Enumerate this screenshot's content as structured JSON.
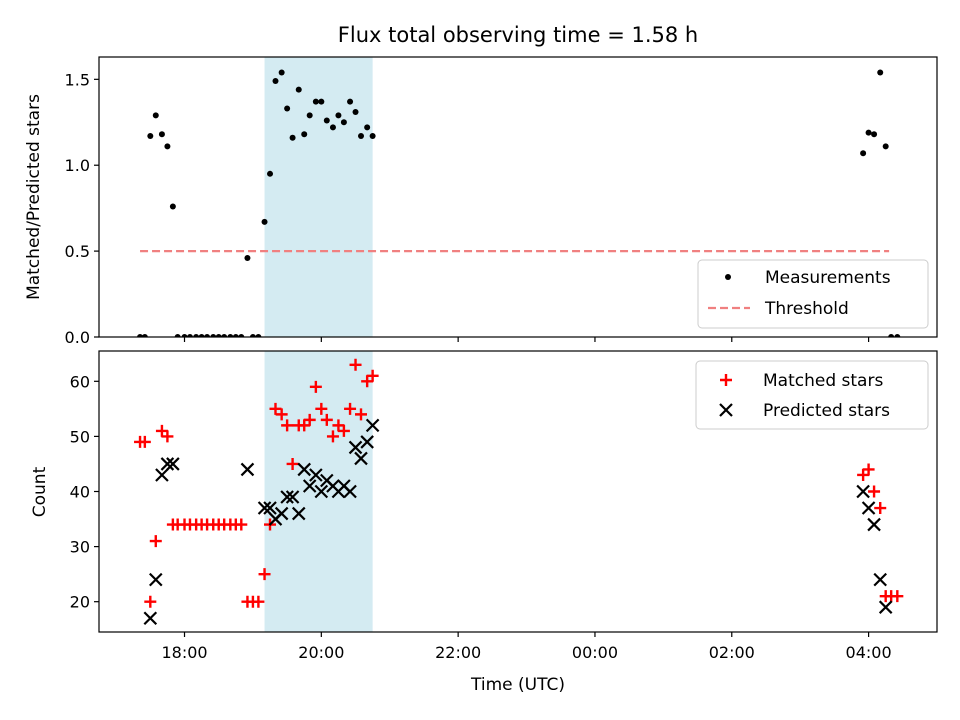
{
  "chart_data": [
    {
      "type": "scatter",
      "title": "Flux total observing time = 1.58 h",
      "xlabel": "",
      "ylabel": "Matched/Predicted stars",
      "x_unit": "hours since 00:00 UTC of first day",
      "xlim": [
        16.75,
        29.0
      ],
      "ylim": [
        0,
        1.63
      ],
      "yticks": [
        0,
        0.5,
        1.0,
        1.5
      ],
      "ytick_labels": [
        "0.0",
        "0.5",
        "1.0",
        "1.5"
      ],
      "highlight_span": [
        19.17,
        20.75
      ],
      "threshold": {
        "name": "Threshold",
        "value": 0.5,
        "x_range": [
          17.35,
          28.3
        ],
        "color": "#f08080"
      },
      "legend": {
        "location": "lower right",
        "entries": [
          "Measurements",
          "Threshold"
        ]
      },
      "series": [
        {
          "name": "Measurements",
          "marker": "dot",
          "color": "#000000",
          "x": [
            17.35,
            17.42,
            17.5,
            17.58,
            17.67,
            17.75,
            17.83,
            17.9,
            18.0,
            18.08,
            18.17,
            18.25,
            18.33,
            18.42,
            18.5,
            18.58,
            18.67,
            18.75,
            18.83,
            18.92,
            19.0,
            19.08,
            19.17,
            19.25,
            19.33,
            19.42,
            19.5,
            19.58,
            19.67,
            19.75,
            19.83,
            19.92,
            20.0,
            20.08,
            20.17,
            20.25,
            20.33,
            20.42,
            20.5,
            20.58,
            20.67,
            20.75,
            27.92,
            28.0,
            28.08,
            28.17,
            28.25,
            28.33,
            28.42
          ],
          "y": [
            0.0,
            0.0,
            1.17,
            1.29,
            1.18,
            1.11,
            0.76,
            0.0,
            0.0,
            0.0,
            0.0,
            0.0,
            0.0,
            0.0,
            0.0,
            0.0,
            0.0,
            0.0,
            0.0,
            0.46,
            0.0,
            0.0,
            0.67,
            0.95,
            1.49,
            1.54,
            1.33,
            1.16,
            1.44,
            1.18,
            1.29,
            1.37,
            1.37,
            1.26,
            1.22,
            1.29,
            1.25,
            1.37,
            1.31,
            1.17,
            1.22,
            1.17,
            1.07,
            1.19,
            1.18,
            1.54,
            1.11,
            0.0,
            0.0
          ]
        }
      ]
    },
    {
      "type": "scatter",
      "title": "",
      "xlabel": "Time (UTC)",
      "ylabel": "Count",
      "xlim": [
        16.75,
        29.0
      ],
      "ylim": [
        14.5,
        65.5
      ],
      "xticks": [
        18,
        20,
        22,
        24,
        26,
        28
      ],
      "xtick_labels": [
        "18:00",
        "20:00",
        "22:00",
        "00:00",
        "02:00",
        "04:00"
      ],
      "yticks": [
        20,
        30,
        40,
        50,
        60
      ],
      "ytick_labels": [
        "20",
        "30",
        "40",
        "50",
        "60"
      ],
      "highlight_span": [
        19.17,
        20.75
      ],
      "legend": {
        "location": "upper right",
        "entries": [
          "Matched stars",
          "Predicted stars"
        ]
      },
      "series": [
        {
          "name": "Matched stars",
          "marker": "plus",
          "color": "#ff0000",
          "x": [
            17.35,
            17.42,
            17.5,
            17.58,
            17.67,
            17.75,
            17.83,
            17.9,
            18.0,
            18.08,
            18.17,
            18.25,
            18.33,
            18.42,
            18.5,
            18.58,
            18.67,
            18.75,
            18.83,
            18.92,
            19.0,
            19.08,
            19.17,
            19.25,
            19.33,
            19.42,
            19.5,
            19.58,
            19.67,
            19.75,
            19.83,
            19.92,
            20.0,
            20.08,
            20.17,
            20.25,
            20.33,
            20.42,
            20.5,
            20.58,
            20.67,
            20.75,
            27.92,
            28.0,
            28.08,
            28.17,
            28.25,
            28.33,
            28.42
          ],
          "y": [
            49,
            49,
            20,
            31,
            51,
            50,
            34,
            34,
            34,
            34,
            34,
            34,
            34,
            34,
            34,
            34,
            34,
            34,
            34,
            20,
            20,
            20,
            25,
            34,
            55,
            54,
            52,
            45,
            52,
            52,
            53,
            59,
            55,
            53,
            50,
            52,
            51,
            55,
            63,
            54,
            60,
            61,
            43,
            44,
            40,
            37,
            21,
            21,
            21
          ]
        },
        {
          "name": "Predicted stars",
          "marker": "x",
          "color": "#000000",
          "x": [
            17.5,
            17.58,
            17.67,
            17.75,
            17.83,
            18.92,
            19.17,
            19.25,
            19.33,
            19.42,
            19.5,
            19.58,
            19.67,
            19.75,
            19.83,
            19.92,
            20.0,
            20.08,
            20.17,
            20.25,
            20.33,
            20.42,
            20.5,
            20.58,
            20.67,
            20.75,
            27.92,
            28.0,
            28.08,
            28.17,
            28.25
          ],
          "y": [
            17,
            24,
            43,
            45,
            45,
            44,
            37,
            37,
            35,
            36,
            39,
            39,
            36,
            44,
            41,
            43,
            40,
            42,
            41,
            40,
            41,
            40,
            48,
            46,
            49,
            52,
            40,
            37,
            34,
            24,
            19
          ]
        }
      ]
    }
  ]
}
